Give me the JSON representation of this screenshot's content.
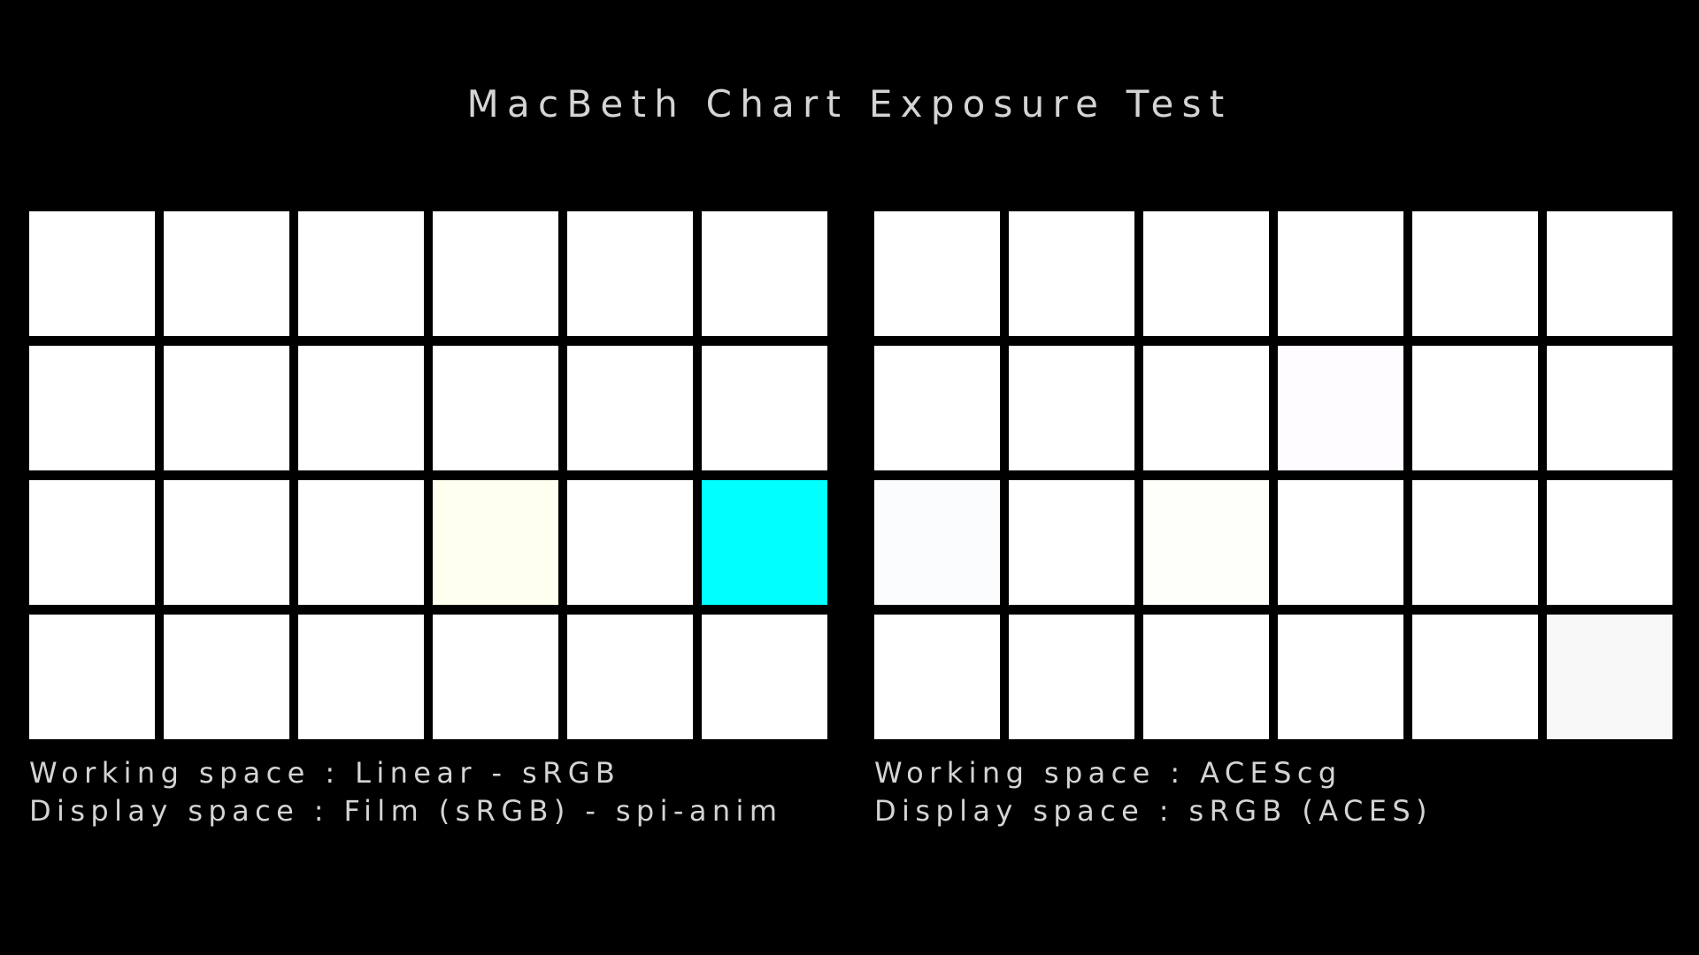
{
  "title": "MacBeth Chart Exposure Test",
  "chart_data": [
    {
      "type": "heatmap",
      "rows": 4,
      "columns": 6,
      "patch_colors": [
        [
          "#ffffff",
          "#ffffff",
          "#ffffff",
          "#ffffff",
          "#ffffff",
          "#ffffff"
        ],
        [
          "#ffffff",
          "#ffffff",
          "#ffffff",
          "#ffffff",
          "#ffffff",
          "#ffffff"
        ],
        [
          "#ffffff",
          "#ffffff",
          "#ffffff",
          "#fffff0",
          "#ffffff",
          "#00ffff"
        ],
        [
          "#ffffff",
          "#ffffff",
          "#ffffff",
          "#ffffff",
          "#ffffff",
          "#ffffff"
        ]
      ],
      "working_space_label": "Working space : Linear - sRGB",
      "display_space_label": "Display space : Film (sRGB) - spi-anim"
    },
    {
      "type": "heatmap",
      "rows": 4,
      "columns": 6,
      "patch_colors": [
        [
          "#ffffff",
          "#ffffff",
          "#ffffff",
          "#ffffff",
          "#ffffff",
          "#ffffff"
        ],
        [
          "#ffffff",
          "#ffffff",
          "#ffffff",
          "#fefcfe",
          "#ffffff",
          "#ffffff"
        ],
        [
          "#fafcfe",
          "#ffffff",
          "#fefffa",
          "#ffffff",
          "#ffffff",
          "#ffffff"
        ],
        [
          "#ffffff",
          "#ffffff",
          "#ffffff",
          "#ffffff",
          "#ffffff",
          "#f8f8f8"
        ]
      ],
      "working_space_label": "Working space : ACEScg",
      "display_space_label": "Display space : sRGB (ACES)"
    }
  ]
}
